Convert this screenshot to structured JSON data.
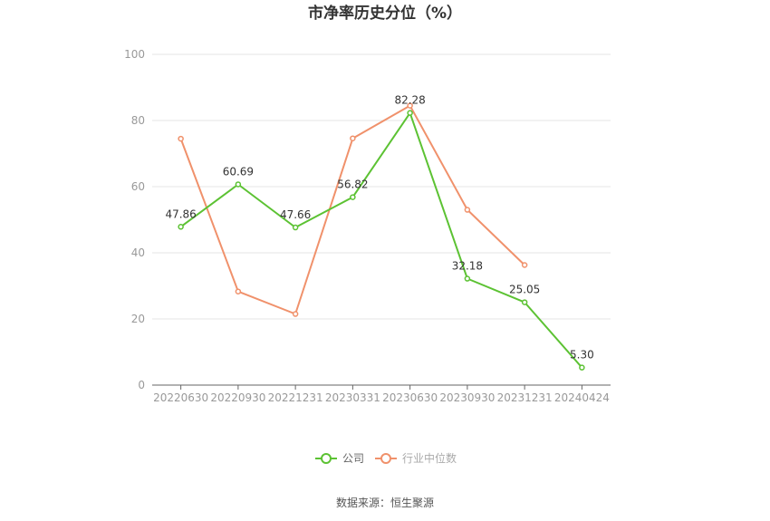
{
  "chart_data": {
    "type": "line",
    "title": "市净率历史分位（%）",
    "categories": [
      "20220630",
      "20220930",
      "20221231",
      "20230331",
      "20230630",
      "20230930",
      "20231231",
      "20240424"
    ],
    "ylim": [
      0,
      100
    ],
    "yticks": [
      0,
      20,
      40,
      60,
      80,
      100
    ],
    "grid": true,
    "legend_position": "bottom",
    "series": [
      {
        "name": "公司",
        "color": "#5cc233",
        "values": [
          47.86,
          60.69,
          47.66,
          56.82,
          82.28,
          32.18,
          25.05,
          5.3
        ],
        "labels": [
          "47.86",
          "60.69",
          "47.66",
          "56.82",
          "82.28",
          "32.18",
          "25.05",
          "5.30"
        ]
      },
      {
        "name": "行业中位数",
        "color": "#f0916b",
        "values": [
          74.5,
          28.3,
          21.5,
          74.6,
          84.5,
          53.0,
          36.3,
          null
        ]
      }
    ]
  },
  "source": "数据来源：恒生聚源"
}
